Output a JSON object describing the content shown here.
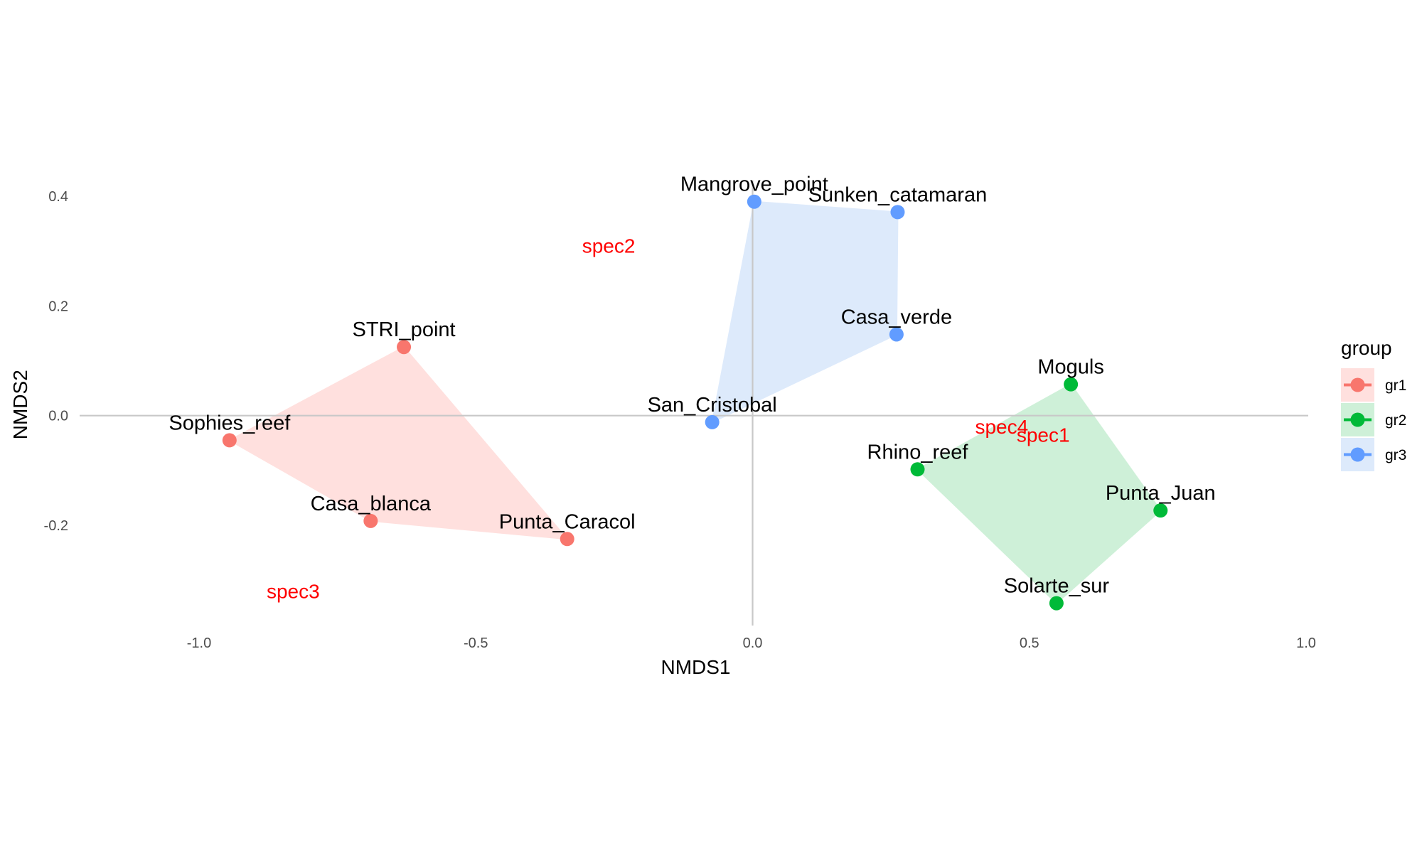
{
  "chart_data": {
    "type": "scatter",
    "title": "",
    "xlabel": "NMDS1",
    "ylabel": "NMDS2",
    "xlim": [
      -1.0,
      1.0
    ],
    "ylim": [
      -0.3,
      0.4
    ],
    "x_ticks": [
      "-1.0",
      "-0.5",
      "0.0",
      "0.5",
      "1.0"
    ],
    "y_ticks": [
      "-0.2",
      "0.0",
      "0.2",
      "0.4"
    ],
    "x_tick_values": [
      -1.0,
      -0.5,
      0.0,
      0.5,
      1.0
    ],
    "y_tick_values": [
      -0.2,
      0.0,
      0.2,
      0.4
    ],
    "grid": false,
    "reference_lines": {
      "x": 0.0,
      "y": 0.0
    },
    "legend": {
      "title": "group",
      "placement": "right",
      "entries": [
        {
          "name": "gr1",
          "color": "#F8766D"
        },
        {
          "name": "gr2",
          "color": "#00BA38"
        },
        {
          "name": "gr3",
          "color": "#619CFF"
        }
      ]
    },
    "series": [
      {
        "name": "gr1",
        "color": "#F8766D",
        "hull_color": "#FFE0DE",
        "points": [
          {
            "label": "STRI_point",
            "x": -0.63,
            "y": 0.125
          },
          {
            "label": "Sophies_reef",
            "x": -0.945,
            "y": -0.045
          },
          {
            "label": "Casa_blanca",
            "x": -0.69,
            "y": -0.192
          },
          {
            "label": "Punta_Caracol",
            "x": -0.335,
            "y": -0.225
          }
        ],
        "hull_order": [
          "STRI_point",
          "Sophies_reef",
          "Casa_blanca",
          "Punta_Caracol"
        ]
      },
      {
        "name": "gr2",
        "color": "#00BA38",
        "hull_color": "#CEF0D8",
        "points": [
          {
            "label": "Moguls",
            "x": 0.575,
            "y": 0.057
          },
          {
            "label": "Rhino_reef",
            "x": 0.298,
            "y": -0.098
          },
          {
            "label": "Punta_Juan",
            "x": 0.737,
            "y": -0.173
          },
          {
            "label": "Solarte_sur",
            "x": 0.549,
            "y": -0.342
          }
        ],
        "hull_order": [
          "Moguls",
          "Rhino_reef",
          "Solarte_sur",
          "Punta_Juan"
        ]
      },
      {
        "name": "gr3",
        "color": "#619CFF",
        "hull_color": "#DDEAFB",
        "points": [
          {
            "label": "Mangrove_point",
            "x": 0.003,
            "y": 0.39
          },
          {
            "label": "Sunken_catamaran",
            "x": 0.262,
            "y": 0.371
          },
          {
            "label": "Casa_verde",
            "x": 0.26,
            "y": 0.148
          },
          {
            "label": "San_Cristobal",
            "x": -0.073,
            "y": -0.012
          }
        ],
        "hull_order": [
          "Mangrove_point",
          "Sunken_catamaran",
          "Casa_verde",
          "San_Cristobal"
        ]
      }
    ],
    "species": [
      {
        "label": "spec2",
        "x": -0.26,
        "y": 0.31
      },
      {
        "label": "spec4",
        "x": 0.45,
        "y": -0.02
      },
      {
        "label": "spec1",
        "x": 0.525,
        "y": -0.035
      },
      {
        "label": "spec3",
        "x": -0.83,
        "y": -0.32
      }
    ]
  }
}
